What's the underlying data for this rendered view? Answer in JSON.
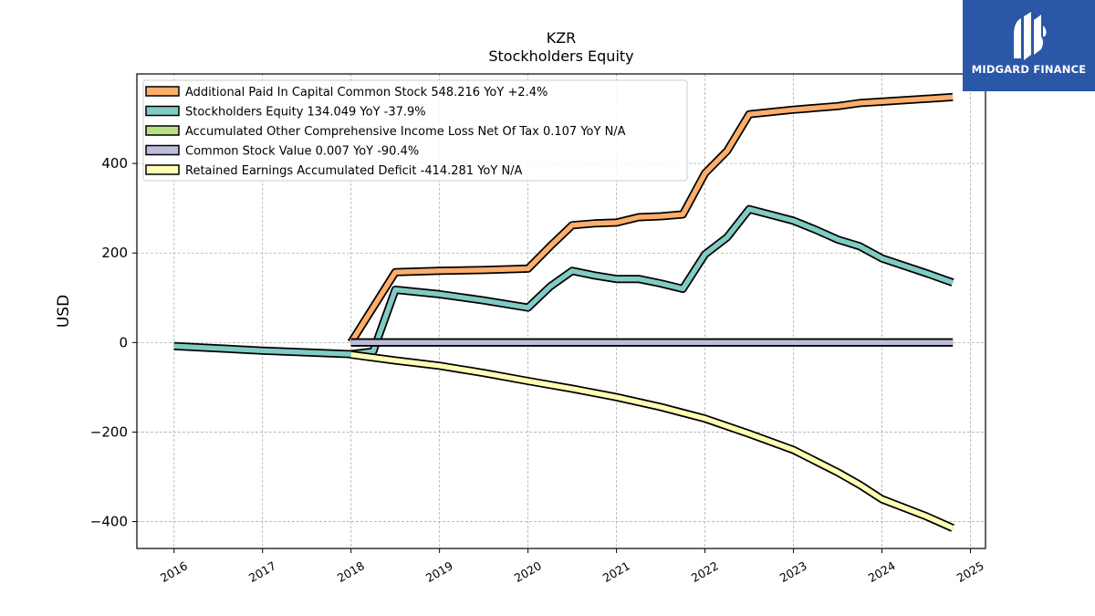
{
  "chart_data": {
    "type": "line",
    "title": "KZR",
    "subtitle": "Stockholders  Equity",
    "xlabel": "",
    "ylabel": "USD",
    "x_ticks": [
      "2016",
      "2017",
      "2018",
      "2019",
      "2020",
      "2021",
      "2022",
      "2023",
      "2024",
      "2025"
    ],
    "y_ticks": [
      "−400",
      "−200",
      "0",
      "200",
      "400"
    ],
    "xlim": [
      2015.58,
      2025.17
    ],
    "ylim": [
      -460,
      600
    ],
    "grid": true,
    "legend_position": "top-left",
    "series": [
      {
        "name": "Additional Paid In Capital Common Stock  548.216 YoY +2.4%",
        "color": "#fdae6b",
        "points": [
          [
            2018.0,
            0
          ],
          [
            2018.5,
            157
          ],
          [
            2019.0,
            160
          ],
          [
            2019.5,
            162
          ],
          [
            2020.0,
            165
          ],
          [
            2020.25,
            215
          ],
          [
            2020.5,
            262
          ],
          [
            2020.75,
            266
          ],
          [
            2021.0,
            268
          ],
          [
            2021.25,
            280
          ],
          [
            2021.5,
            282
          ],
          [
            2021.75,
            286
          ],
          [
            2022.0,
            378
          ],
          [
            2022.25,
            428
          ],
          [
            2022.5,
            510
          ],
          [
            2022.75,
            515
          ],
          [
            2023.0,
            520
          ],
          [
            2023.5,
            528
          ],
          [
            2023.75,
            535
          ],
          [
            2024.0,
            538
          ],
          [
            2024.8,
            548.216
          ]
        ]
      },
      {
        "name": "Stockholders Equity  134.049 YoY -37.9%",
        "color": "#80cbc4",
        "points": [
          [
            2016.0,
            -8
          ],
          [
            2017.0,
            -18
          ],
          [
            2018.0,
            -26
          ],
          [
            2018.25,
            -20
          ],
          [
            2018.5,
            118
          ],
          [
            2019.0,
            108
          ],
          [
            2019.5,
            94
          ],
          [
            2020.0,
            78
          ],
          [
            2020.25,
            125
          ],
          [
            2020.5,
            160
          ],
          [
            2020.75,
            150
          ],
          [
            2021.0,
            142
          ],
          [
            2021.25,
            142
          ],
          [
            2021.5,
            132
          ],
          [
            2021.75,
            120
          ],
          [
            2022.0,
            197
          ],
          [
            2022.25,
            235
          ],
          [
            2022.5,
            298
          ],
          [
            2022.75,
            285
          ],
          [
            2023.0,
            272
          ],
          [
            2023.25,
            252
          ],
          [
            2023.5,
            230
          ],
          [
            2023.75,
            215
          ],
          [
            2024.0,
            188
          ],
          [
            2024.5,
            155
          ],
          [
            2024.8,
            134.049
          ]
        ]
      },
      {
        "name": "Accumulated Other Comprehensive Income Loss Net Of Tax  0.107 YoY N/A",
        "color": "#b8e186",
        "points": [
          [
            2018.0,
            0
          ],
          [
            2024.8,
            0.107
          ]
        ]
      },
      {
        "name": "Common Stock Value  0.007 YoY -90.4%",
        "color": "#bcbddc",
        "points": [
          [
            2018.0,
            0.07
          ],
          [
            2024.8,
            0.007
          ]
        ]
      },
      {
        "name": "Retained Earnings Accumulated Deficit  -414.281 YoY N/A",
        "color": "#ffffb3",
        "points": [
          [
            2018.0,
            -27
          ],
          [
            2018.5,
            -40
          ],
          [
            2019.0,
            -52
          ],
          [
            2019.5,
            -68
          ],
          [
            2020.0,
            -86
          ],
          [
            2020.5,
            -103
          ],
          [
            2021.0,
            -122
          ],
          [
            2021.5,
            -144
          ],
          [
            2022.0,
            -170
          ],
          [
            2022.5,
            -204
          ],
          [
            2023.0,
            -240
          ],
          [
            2023.25,
            -265
          ],
          [
            2023.5,
            -290
          ],
          [
            2023.75,
            -318
          ],
          [
            2024.0,
            -350
          ],
          [
            2024.5,
            -388
          ],
          [
            2024.8,
            -414.281
          ]
        ]
      }
    ]
  },
  "logo": {
    "text": "MIDGARD FINANCE",
    "color": "#2a57a8"
  }
}
